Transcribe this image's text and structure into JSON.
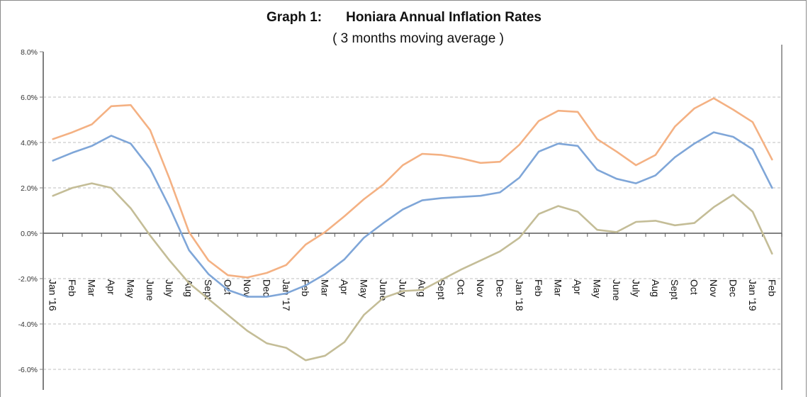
{
  "chart_data": {
    "type": "line",
    "title_prefix": "Graph 1:",
    "title": "Honiara Annual Inflation Rates",
    "subtitle": "( 3 months moving average )",
    "xlabel": "",
    "ylabel": "",
    "ylim": [
      -6.0,
      8.0
    ],
    "y_ticks": [
      {
        "value": 8,
        "label": "8.0%"
      },
      {
        "value": 6,
        "label": "6.0%"
      },
      {
        "value": 4,
        "label": "4.0%"
      },
      {
        "value": 2,
        "label": "2.0%"
      },
      {
        "value": 0,
        "label": "0.0%"
      },
      {
        "value": -2,
        "label": "-2.0%"
      },
      {
        "value": -4,
        "label": "-4.0%"
      },
      {
        "value": -6,
        "label": "-6.0%"
      }
    ],
    "grid": true,
    "legend": "none",
    "categories": [
      "Jan '16",
      "Feb",
      "Mar",
      "Apr",
      "May",
      "June",
      "July",
      "Aug",
      "Sept",
      "Oct",
      "Nov",
      "Dec",
      "Jan '17",
      "Feb",
      "Mar",
      "Apr",
      "May",
      "June",
      "July",
      "Aug",
      "Sept",
      "Oct",
      "Nov",
      "Dec",
      "Jan '18",
      "Feb",
      "Mar",
      "Apr",
      "May",
      "June",
      "July",
      "Aug",
      "Sept",
      "Oct",
      "Nov",
      "Dec",
      "Jan '19",
      "Feb"
    ],
    "series": [
      {
        "name": "orange-series",
        "color": "#f4b183",
        "values": [
          4.15,
          4.45,
          4.8,
          5.6,
          5.65,
          4.55,
          2.4,
          0.05,
          -1.2,
          -1.85,
          -1.95,
          -1.75,
          -1.4,
          -0.5,
          0.05,
          0.75,
          1.5,
          2.15,
          3.0,
          3.5,
          3.45,
          3.3,
          3.1,
          3.15,
          3.9,
          4.95,
          5.4,
          5.35,
          4.15,
          3.6,
          3.0,
          3.45,
          4.7,
          5.5,
          5.95,
          5.45,
          4.9,
          3.25
        ]
      },
      {
        "name": "blue-series",
        "color": "#7fa6d8",
        "values": [
          3.2,
          3.55,
          3.85,
          4.3,
          3.95,
          2.85,
          1.15,
          -0.75,
          -1.8,
          -2.5,
          -2.8,
          -2.8,
          -2.65,
          -2.3,
          -1.8,
          -1.15,
          -0.2,
          0.45,
          1.05,
          1.45,
          1.55,
          1.6,
          1.65,
          1.8,
          2.45,
          3.6,
          3.95,
          3.85,
          2.8,
          2.4,
          2.2,
          2.55,
          3.35,
          3.95,
          4.45,
          4.25,
          3.7,
          2.0
        ]
      },
      {
        "name": "olive-series",
        "color": "#c4bd97",
        "values": [
          1.65,
          2.0,
          2.2,
          2.0,
          1.1,
          -0.1,
          -1.2,
          -2.2,
          -2.9,
          -3.6,
          -4.3,
          -4.85,
          -5.05,
          -5.6,
          -5.4,
          -4.8,
          -3.6,
          -2.85,
          -2.55,
          -2.5,
          -2.05,
          -1.6,
          -1.2,
          -0.8,
          -0.2,
          0.85,
          1.2,
          0.95,
          0.15,
          0.05,
          0.5,
          0.55,
          0.35,
          0.45,
          1.15,
          1.7,
          0.95,
          -0.9
        ]
      }
    ]
  }
}
